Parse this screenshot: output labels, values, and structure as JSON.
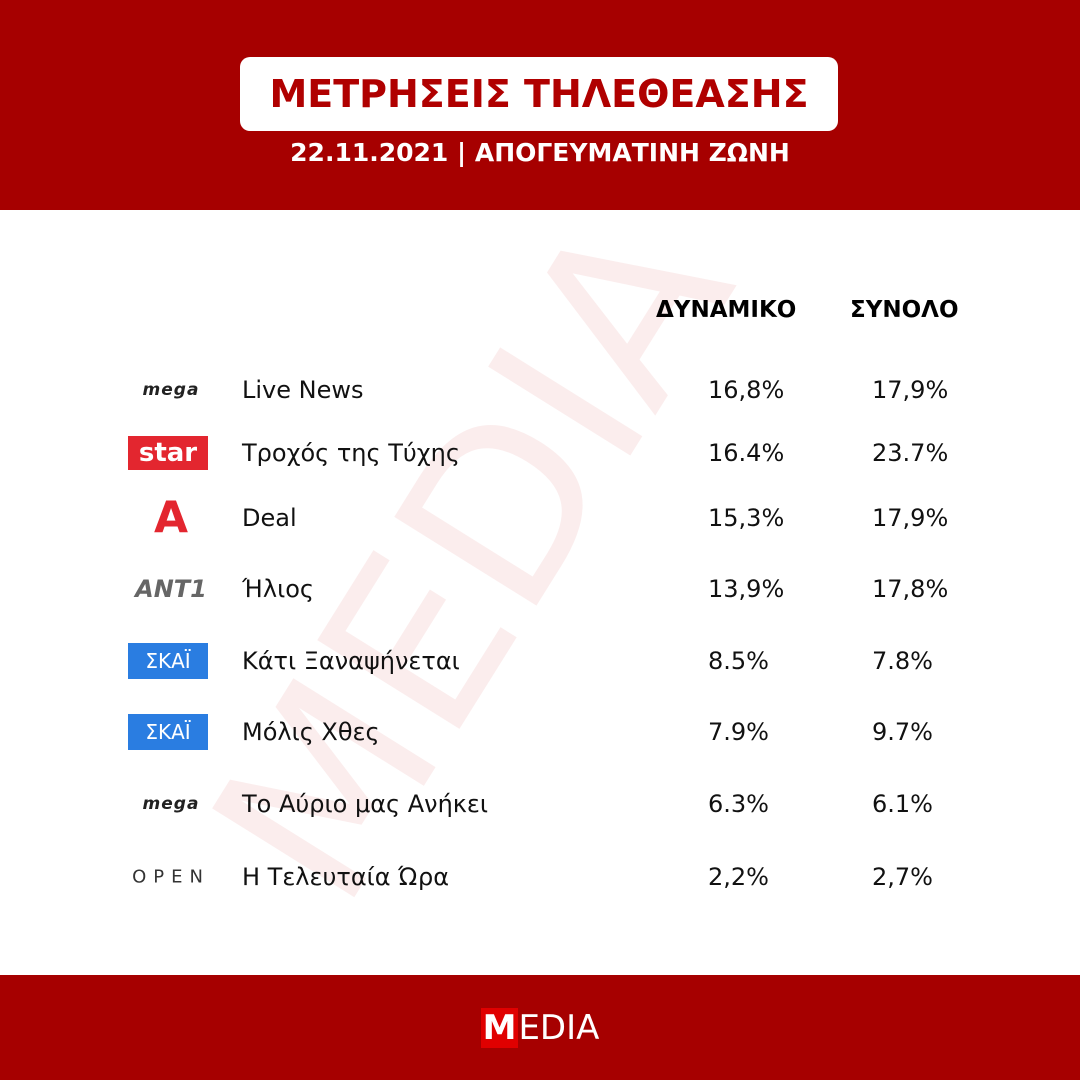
{
  "header": {
    "title": "ΜΕΤΡΗΣΕΙΣ ΤΗΛΕΘΕΑΣΗΣ",
    "subtitle": "22.11.2021 | ΑΠΟΓΕΥΜΑΤΙΝΗ ΖΩΝΗ"
  },
  "table": {
    "columns": [
      "ΔΥΝΑΜΙΚΟ",
      "ΣΥΝΟΛΟ"
    ],
    "rows": [
      {
        "logo": "mega",
        "show": "Live News",
        "values": [
          "16,8%",
          "17,9%"
        ]
      },
      {
        "logo": "star",
        "show": "Τροχός της Τύχης",
        "values": [
          "16.4%",
          "23.7%"
        ]
      },
      {
        "logo": "A",
        "show": "Deal",
        "values": [
          "15,3%",
          "17,9%"
        ]
      },
      {
        "logo": "ANT1",
        "show": "Ήλιος",
        "values": [
          "13,9%",
          "17,8%"
        ]
      },
      {
        "logo": "ΣΚΑΪ",
        "show": "Κάτι Ξαναψήνεται",
        "values": [
          "8.5%",
          "7.8%"
        ]
      },
      {
        "logo": "ΣΚΑΪ",
        "show": "Μόλις Χθες",
        "values": [
          "7.9%",
          "9.7%"
        ]
      },
      {
        "logo": "mega",
        "show": "Το Αύριο μας Ανήκει",
        "values": [
          "6.3%",
          "6.1%"
        ]
      },
      {
        "logo": "OPEN",
        "show": "Η Τελευταία Ώρα",
        "values": [
          "2,2%",
          "2,7%"
        ]
      }
    ]
  },
  "watermark": "MEDIA",
  "footer": {
    "brand_initial": "M",
    "brand_rest": "EDIA"
  }
}
